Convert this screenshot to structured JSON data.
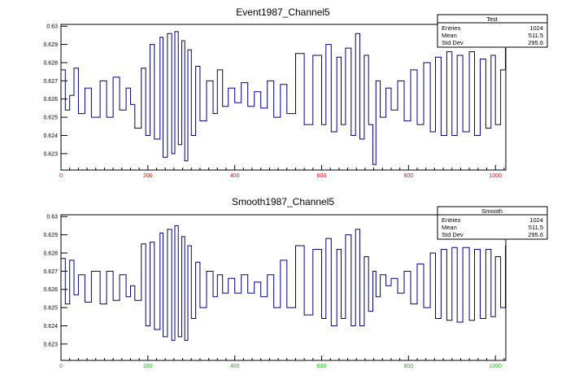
{
  "chart_data": [
    {
      "type": "line",
      "title": "Event1987_Channel5",
      "xlabel": "",
      "ylabel": "",
      "xlim": [
        0,
        1024
      ],
      "ylim": [
        0.6221,
        0.6301
      ],
      "x_ticks": [
        0,
        200,
        400,
        600,
        800,
        1000
      ],
      "x_tick_labels": [
        "0",
        "200",
        "400",
        "600",
        "800",
        "1000"
      ],
      "y_ticks": [
        0.623,
        0.624,
        0.625,
        0.626,
        0.627,
        0.628,
        0.629,
        0.63
      ],
      "y_tick_labels": [
        "0.623",
        "0.624",
        "0.625",
        "0.626",
        "0.627",
        "0.628",
        "0.629",
        "0.63"
      ],
      "x_tick_color": "#ff0000",
      "line_color": "#000080",
      "grid": false,
      "legend_position": "top-right",
      "stats_box": {
        "title": "Test",
        "rows": [
          {
            "label": "Entries",
            "value": "1024"
          },
          {
            "label": "Mean",
            "value": "511.5"
          },
          {
            "label": "Std Dev",
            "value": "295.6"
          }
        ]
      },
      "series": [
        {
          "x": [
            0,
            10,
            20,
            30,
            40,
            55,
            70,
            90,
            105,
            120,
            135,
            150,
            160,
            170,
            185,
            195,
            205,
            215,
            228,
            235,
            245,
            255,
            262,
            270,
            278,
            285,
            292,
            300,
            310,
            320,
            335,
            350,
            360,
            372,
            385,
            400,
            415,
            430,
            445,
            460,
            475,
            490,
            505,
            520,
            540,
            560,
            580,
            600,
            610,
            622,
            635,
            645,
            655,
            668,
            678,
            688,
            698,
            708,
            718,
            725,
            735,
            748,
            760,
            775,
            790,
            805,
            820,
            835,
            850,
            862,
            875,
            888,
            900,
            912,
            925,
            940,
            952,
            965,
            978,
            990,
            1000,
            1012,
            1023
          ],
          "y": [
            0.6276,
            0.6254,
            0.6262,
            0.6277,
            0.6252,
            0.6266,
            0.625,
            0.627,
            0.625,
            0.6272,
            0.6254,
            0.6266,
            0.6257,
            0.6244,
            0.6277,
            0.624,
            0.629,
            0.6238,
            0.6294,
            0.6228,
            0.6296,
            0.623,
            0.6297,
            0.6235,
            0.6292,
            0.6226,
            0.6287,
            0.624,
            0.6278,
            0.6248,
            0.627,
            0.6252,
            0.6276,
            0.6256,
            0.6266,
            0.6258,
            0.6269,
            0.6256,
            0.6264,
            0.6255,
            0.627,
            0.625,
            0.6268,
            0.6252,
            0.6285,
            0.6246,
            0.6284,
            0.6246,
            0.629,
            0.6242,
            0.6283,
            0.6246,
            0.6288,
            0.624,
            0.6296,
            0.6238,
            0.6284,
            0.6246,
            0.6224,
            0.627,
            0.625,
            0.6266,
            0.6254,
            0.627,
            0.6248,
            0.6276,
            0.6246,
            0.628,
            0.6242,
            0.6283,
            0.624,
            0.6286,
            0.624,
            0.6284,
            0.6242,
            0.6286,
            0.624,
            0.6282,
            0.6244,
            0.6284,
            0.6246,
            0.6276,
            0.6288
          ]
        }
      ]
    },
    {
      "type": "line",
      "title": "Smooth1987_Channel5",
      "xlabel": "",
      "ylabel": "",
      "xlim": [
        0,
        1024
      ],
      "ylim": [
        0.6221,
        0.6301
      ],
      "x_ticks": [
        0,
        200,
        400,
        600,
        800,
        1000
      ],
      "x_tick_labels": [
        "0",
        "200",
        "400",
        "600",
        "800",
        "1000"
      ],
      "y_ticks": [
        0.623,
        0.624,
        0.625,
        0.626,
        0.627,
        0.628,
        0.629,
        0.63
      ],
      "y_tick_labels": [
        "0.623",
        "0.624",
        "0.625",
        "0.626",
        "0.627",
        "0.628",
        "0.629",
        "0.63"
      ],
      "x_tick_color": "#00cc00",
      "line_color": "#000080",
      "grid": false,
      "legend_position": "top-right",
      "stats_box": {
        "title": "Smooth",
        "rows": [
          {
            "label": "Entries",
            "value": "1024"
          },
          {
            "label": "Mean",
            "value": "511.5"
          },
          {
            "label": "Std Dev",
            "value": "295.6"
          }
        ]
      },
      "series": [
        {
          "x": [
            0,
            10,
            20,
            30,
            40,
            55,
            70,
            90,
            105,
            120,
            135,
            150,
            160,
            170,
            185,
            195,
            205,
            215,
            228,
            235,
            245,
            255,
            262,
            270,
            278,
            285,
            292,
            300,
            310,
            320,
            335,
            350,
            360,
            372,
            385,
            400,
            415,
            430,
            445,
            460,
            475,
            490,
            505,
            520,
            540,
            560,
            580,
            600,
            610,
            622,
            635,
            645,
            655,
            668,
            678,
            688,
            698,
            708,
            718,
            725,
            735,
            748,
            760,
            775,
            790,
            805,
            820,
            835,
            850,
            862,
            875,
            888,
            900,
            912,
            925,
            940,
            952,
            965,
            978,
            990,
            1000,
            1012,
            1023
          ],
          "y": [
            0.6277,
            0.6252,
            0.6276,
            0.6257,
            0.6268,
            0.6253,
            0.627,
            0.6252,
            0.627,
            0.6254,
            0.6268,
            0.6256,
            0.6262,
            0.6254,
            0.6285,
            0.624,
            0.6286,
            0.6238,
            0.6291,
            0.6234,
            0.6293,
            0.6232,
            0.6295,
            0.6234,
            0.6289,
            0.6232,
            0.6284,
            0.6244,
            0.6275,
            0.625,
            0.627,
            0.6256,
            0.6268,
            0.6258,
            0.6266,
            0.6258,
            0.6268,
            0.6258,
            0.6264,
            0.6256,
            0.6268,
            0.625,
            0.6276,
            0.625,
            0.6284,
            0.6246,
            0.6282,
            0.6244,
            0.6288,
            0.624,
            0.6282,
            0.6244,
            0.629,
            0.624,
            0.6293,
            0.624,
            0.6278,
            0.6248,
            0.627,
            0.6256,
            0.6268,
            0.6262,
            0.6266,
            0.6258,
            0.627,
            0.6252,
            0.6274,
            0.625,
            0.628,
            0.6244,
            0.6282,
            0.6243,
            0.6283,
            0.6242,
            0.6283,
            0.6243,
            0.6282,
            0.6244,
            0.6282,
            0.6245,
            0.6278,
            0.625,
            0.6284
          ]
        }
      ]
    }
  ]
}
